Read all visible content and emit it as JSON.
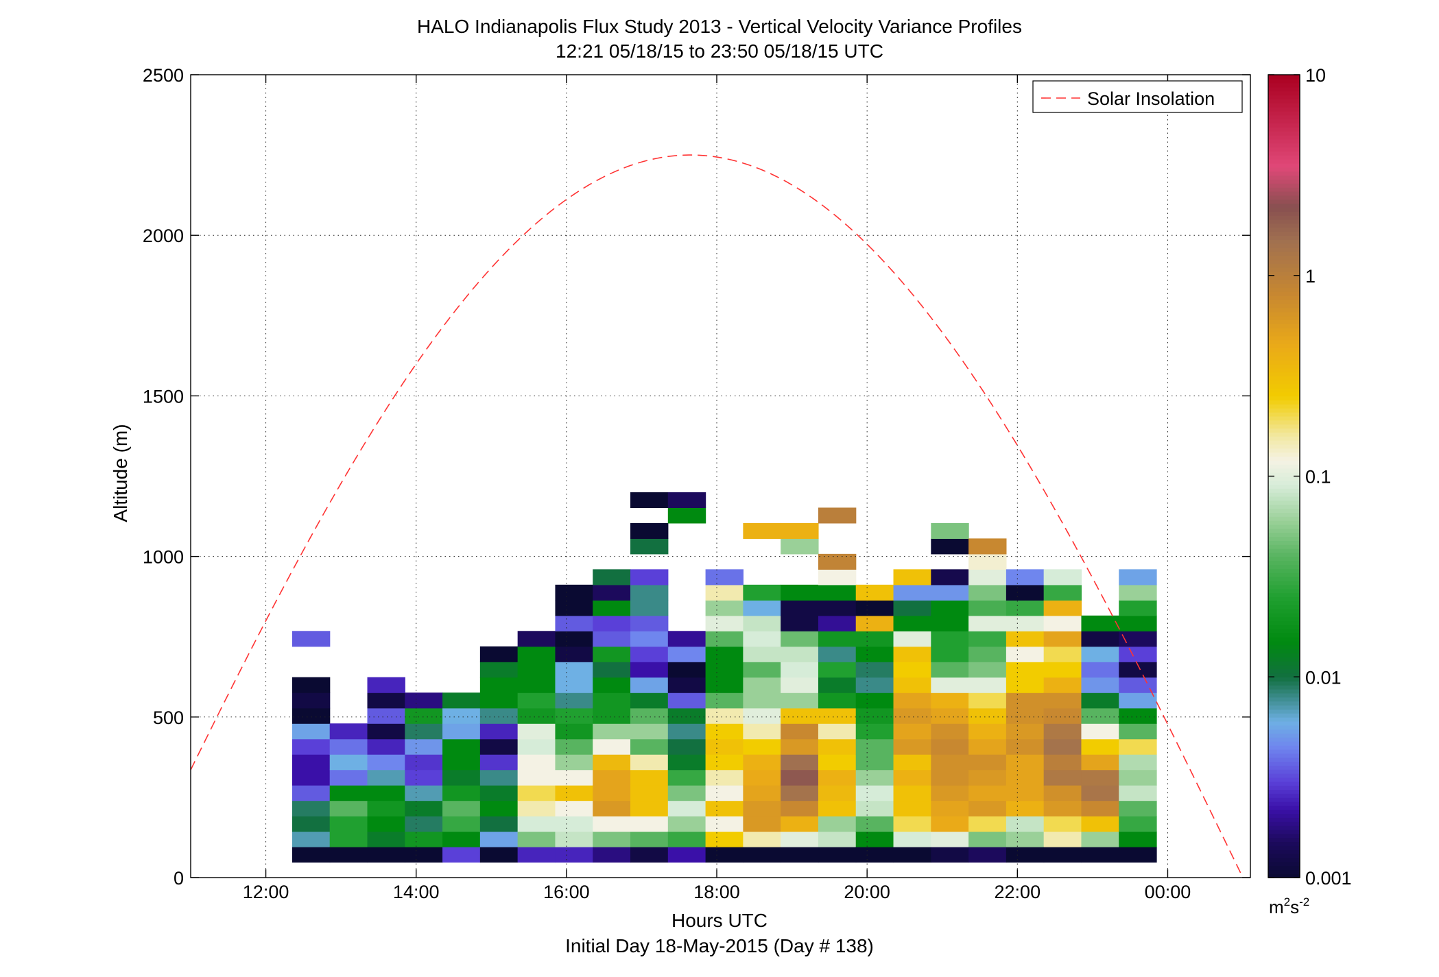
{
  "chart_data": {
    "type": "heatmap",
    "title": "HALO Indianapolis Flux Study 2013 - Vertical Velocity Variance Profiles",
    "subtitle": "12:21 05/18/15 to 23:50 05/18/15  UTC",
    "xlabel": "Hours UTC",
    "footnote": "Initial Day 18-May-2015 (Day # 138)",
    "ylabel": "Altitude (m)",
    "xlim_hours": [
      11.0,
      25.1
    ],
    "ylim": [
      0,
      2500
    ],
    "xticks": [
      {
        "value": 12,
        "label": "12:00"
      },
      {
        "value": 14,
        "label": "14:00"
      },
      {
        "value": 16,
        "label": "16:00"
      },
      {
        "value": 18,
        "label": "18:00"
      },
      {
        "value": 20,
        "label": "20:00"
      },
      {
        "value": 22,
        "label": "22:00"
      },
      {
        "value": 24,
        "label": "00:00"
      }
    ],
    "yticks": [
      {
        "value": 0,
        "label": "0"
      },
      {
        "value": 500,
        "label": "500"
      },
      {
        "value": 1000,
        "label": "1000"
      },
      {
        "value": 1500,
        "label": "1500"
      },
      {
        "value": 2000,
        "label": "2000"
      },
      {
        "value": 2500,
        "label": "2500"
      }
    ],
    "grid": true,
    "grid_style": "dotted",
    "legend": {
      "position": "top-right",
      "entries": [
        {
          "name": "Solar Insolation",
          "color": "#ff3333",
          "style": "dashed"
        }
      ]
    },
    "colorbar": {
      "scale": "log",
      "range": [
        0.001,
        10
      ],
      "unit": "m2s-2",
      "ticks": [
        {
          "value": 0.001,
          "label": "0.001"
        },
        {
          "value": 0.01,
          "label": "0.01"
        },
        {
          "value": 0.1,
          "label": "0.1"
        },
        {
          "value": 1,
          "label": "1"
        },
        {
          "value": 10,
          "label": "10"
        }
      ],
      "stops": [
        {
          "v": 0.001,
          "color": "#0a0a32"
        },
        {
          "v": 0.0015,
          "color": "#1c0a5c"
        },
        {
          "v": 0.0022,
          "color": "#3a10a8"
        },
        {
          "v": 0.003,
          "color": "#5a40d8"
        },
        {
          "v": 0.0045,
          "color": "#6f86ee"
        },
        {
          "v": 0.006,
          "color": "#6eb0e4"
        },
        {
          "v": 0.008,
          "color": "#3a8a88"
        },
        {
          "v": 0.01,
          "color": "#127040"
        },
        {
          "v": 0.015,
          "color": "#008a10"
        },
        {
          "v": 0.025,
          "color": "#20a030"
        },
        {
          "v": 0.04,
          "color": "#58b460"
        },
        {
          "v": 0.06,
          "color": "#9ad098"
        },
        {
          "v": 0.09,
          "color": "#d6ecd8"
        },
        {
          "v": 0.12,
          "color": "#f4f2e4"
        },
        {
          "v": 0.16,
          "color": "#f2e8a0"
        },
        {
          "v": 0.25,
          "color": "#f2cc00"
        },
        {
          "v": 0.45,
          "color": "#eaaa18"
        },
        {
          "v": 0.8,
          "color": "#c88830"
        },
        {
          "v": 1.5,
          "color": "#a07050"
        },
        {
          "v": 2.2,
          "color": "#885050"
        },
        {
          "v": 3.5,
          "color": "#e04878"
        },
        {
          "v": 10,
          "color": "#aa0020"
        }
      ]
    },
    "solar_curve": {
      "peak_altitude": 2250,
      "peak_hour": 17.65,
      "zero_hours": [
        10.3,
        25.0
      ]
    },
    "column_width_hours": 0.5,
    "row_height_m": 48,
    "row_base_m": 48,
    "columns": [
      {
        "t": 12.6,
        "values": [
          0.001,
          0.007,
          0.01,
          0.009,
          0.0035,
          0.0022,
          0.0022,
          0.003,
          0.0055,
          0.001,
          0.0012,
          0.001,
          null,
          null,
          0.0035
        ]
      },
      {
        "t": 13.1,
        "values": [
          0.001,
          0.025,
          0.025,
          0.04,
          0.015,
          0.004,
          0.006,
          0.004,
          0.0025,
          null,
          null,
          null,
          null,
          null,
          null
        ]
      },
      {
        "t": 13.6,
        "values": [
          0.001,
          0.012,
          0.015,
          0.02,
          0.015,
          0.007,
          0.0045,
          0.0025,
          0.0012,
          0.0035,
          0.0012,
          0.0025,
          null,
          null,
          null
        ]
      },
      {
        "t": 14.1,
        "values": [
          0.001,
          0.02,
          0.009,
          0.012,
          0.007,
          0.003,
          0.0028,
          0.005,
          0.009,
          0.02,
          0.0018,
          null,
          null,
          null,
          null
        ]
      },
      {
        "t": 14.6,
        "values": [
          0.003,
          0.015,
          0.03,
          0.04,
          0.02,
          0.012,
          0.015,
          0.015,
          0.0055,
          0.006,
          0.012,
          null,
          null,
          null,
          null
        ]
      },
      {
        "t": 15.1,
        "values": [
          0.001,
          0.0055,
          0.01,
          0.015,
          0.012,
          0.008,
          0.0028,
          0.0012,
          0.0025,
          0.008,
          0.015,
          0.015,
          0.012,
          0.001,
          null
        ]
      },
      {
        "t": 15.6,
        "values": [
          0.0025,
          0.05,
          0.09,
          0.15,
          0.2,
          0.12,
          0.12,
          0.09,
          0.1,
          0.02,
          0.025,
          0.015,
          0.015,
          0.015,
          0.0015
        ]
      },
      {
        "t": 16.1,
        "values": [
          0.0025,
          0.08,
          0.09,
          0.12,
          0.3,
          0.12,
          0.06,
          0.04,
          0.02,
          0.025,
          0.008,
          0.006,
          0.006,
          0.0012,
          0.001,
          0.0035,
          0.001,
          0.001
        ]
      },
      {
        "t": 16.6,
        "values": [
          0.0018,
          0.05,
          0.12,
          0.6,
          0.5,
          0.5,
          0.35,
          0.12,
          0.06,
          0.02,
          0.02,
          0.015,
          0.01,
          0.02,
          0.0035,
          0.003,
          0.015,
          0.0015,
          0.01
        ]
      },
      {
        "t": 17.1,
        "values": [
          0.0012,
          0.04,
          0.12,
          0.3,
          0.3,
          0.3,
          0.15,
          0.04,
          0.06,
          0.04,
          0.012,
          0.0055,
          0.0022,
          0.003,
          0.0045,
          0.0035,
          0.008,
          0.008,
          0.003,
          null,
          0.01,
          0.001,
          null,
          0.001
        ]
      },
      {
        "t": 17.6,
        "values": [
          0.0022,
          0.03,
          0.06,
          0.09,
          0.05,
          0.03,
          0.012,
          0.01,
          0.008,
          0.012,
          0.0035,
          0.0012,
          0.001,
          0.0045,
          0.002,
          null,
          null,
          null,
          null,
          null,
          null,
          null,
          0.015,
          0.0015
        ]
      },
      {
        "t": 18.1,
        "values": [
          0.001,
          0.25,
          0.12,
          0.3,
          0.12,
          0.15,
          0.25,
          0.3,
          0.25,
          0.15,
          0.04,
          0.015,
          0.015,
          0.015,
          0.04,
          0.1,
          0.06,
          0.15,
          0.004
        ]
      },
      {
        "t": 18.6,
        "values": [
          0.001,
          0.15,
          0.6,
          0.6,
          0.5,
          0.45,
          0.4,
          0.25,
          0.15,
          0.1,
          0.06,
          0.06,
          0.04,
          0.08,
          0.09,
          0.08,
          0.006,
          0.025,
          null,
          null,
          null,
          0.4
        ]
      },
      {
        "t": 19.1,
        "values": [
          0.001,
          0.1,
          0.4,
          0.8,
          1.4,
          2,
          1.5,
          0.6,
          0.8,
          0.3,
          0.06,
          0.1,
          0.09,
          0.08,
          0.045,
          0.0012,
          0.0012,
          0.015,
          null,
          null,
          0.06,
          0.4
        ]
      },
      {
        "t": 19.6,
        "values": [
          0.001,
          0.08,
          0.06,
          0.3,
          0.35,
          0.4,
          0.25,
          0.3,
          0.15,
          0.3,
          0.02,
          0.012,
          0.025,
          0.008,
          0.02,
          0.002,
          0.0012,
          0.015,
          0.12,
          0.9,
          null,
          null,
          1
        ]
      },
      {
        "t": 20.1,
        "values": [
          0.001,
          0.015,
          0.04,
          0.08,
          0.09,
          0.06,
          0.04,
          0.04,
          0.025,
          0.02,
          0.015,
          0.008,
          0.009,
          0.015,
          0.02,
          0.4,
          0.001,
          0.3,
          null,
          null
        ]
      },
      {
        "t": 20.6,
        "values": [
          0.001,
          0.09,
          0.2,
          0.3,
          0.3,
          0.4,
          0.3,
          0.6,
          0.5,
          0.6,
          0.5,
          0.3,
          0.25,
          0.3,
          0.1,
          0.015,
          0.01,
          0.005,
          0.3,
          null
        ]
      },
      {
        "t": 21.1,
        "values": [
          0.0012,
          0.1,
          0.45,
          0.5,
          0.6,
          0.7,
          0.7,
          0.8,
          0.7,
          0.5,
          0.4,
          0.1,
          0.04,
          0.025,
          0.025,
          0.015,
          0.015,
          0.005,
          0.0013,
          null,
          0.001,
          0.05
        ]
      },
      {
        "t": 21.6,
        "values": [
          0.0015,
          0.05,
          0.2,
          0.6,
          0.5,
          0.6,
          0.7,
          0.5,
          0.4,
          0.3,
          0.2,
          0.1,
          0.05,
          0.04,
          0.03,
          0.1,
          0.035,
          0.05,
          0.1,
          0.13,
          0.8,
          null
        ]
      },
      {
        "t": 22.1,
        "values": [
          0.001,
          0.06,
          0.08,
          0.4,
          0.5,
          0.5,
          0.5,
          0.7,
          0.6,
          0.7,
          0.7,
          0.25,
          0.25,
          0.12,
          0.3,
          0.1,
          0.03,
          0.001,
          0.0045
        ]
      },
      {
        "t": 22.6,
        "values": [
          0.001,
          0.15,
          0.2,
          0.6,
          0.7,
          1.2,
          1,
          1.4,
          1.2,
          0.8,
          0.7,
          0.4,
          0.25,
          0.2,
          0.5,
          0.12,
          0.4,
          0.03,
          0.09
        ]
      },
      {
        "t": 23.1,
        "values": [
          0.001,
          0.06,
          0.3,
          0.8,
          1.3,
          1.2,
          0.5,
          0.25,
          0.12,
          0.04,
          0.012,
          0.005,
          0.004,
          0.006,
          0.0012,
          0.015
        ]
      },
      {
        "t": 23.6,
        "values": [
          0.001,
          0.015,
          0.03,
          0.04,
          0.08,
          0.06,
          0.07,
          0.2,
          0.04,
          0.015,
          0.0055,
          0.0035,
          0.0012,
          0.003,
          0.0015,
          0.015,
          0.025,
          0.06,
          0.0055
        ]
      }
    ]
  }
}
